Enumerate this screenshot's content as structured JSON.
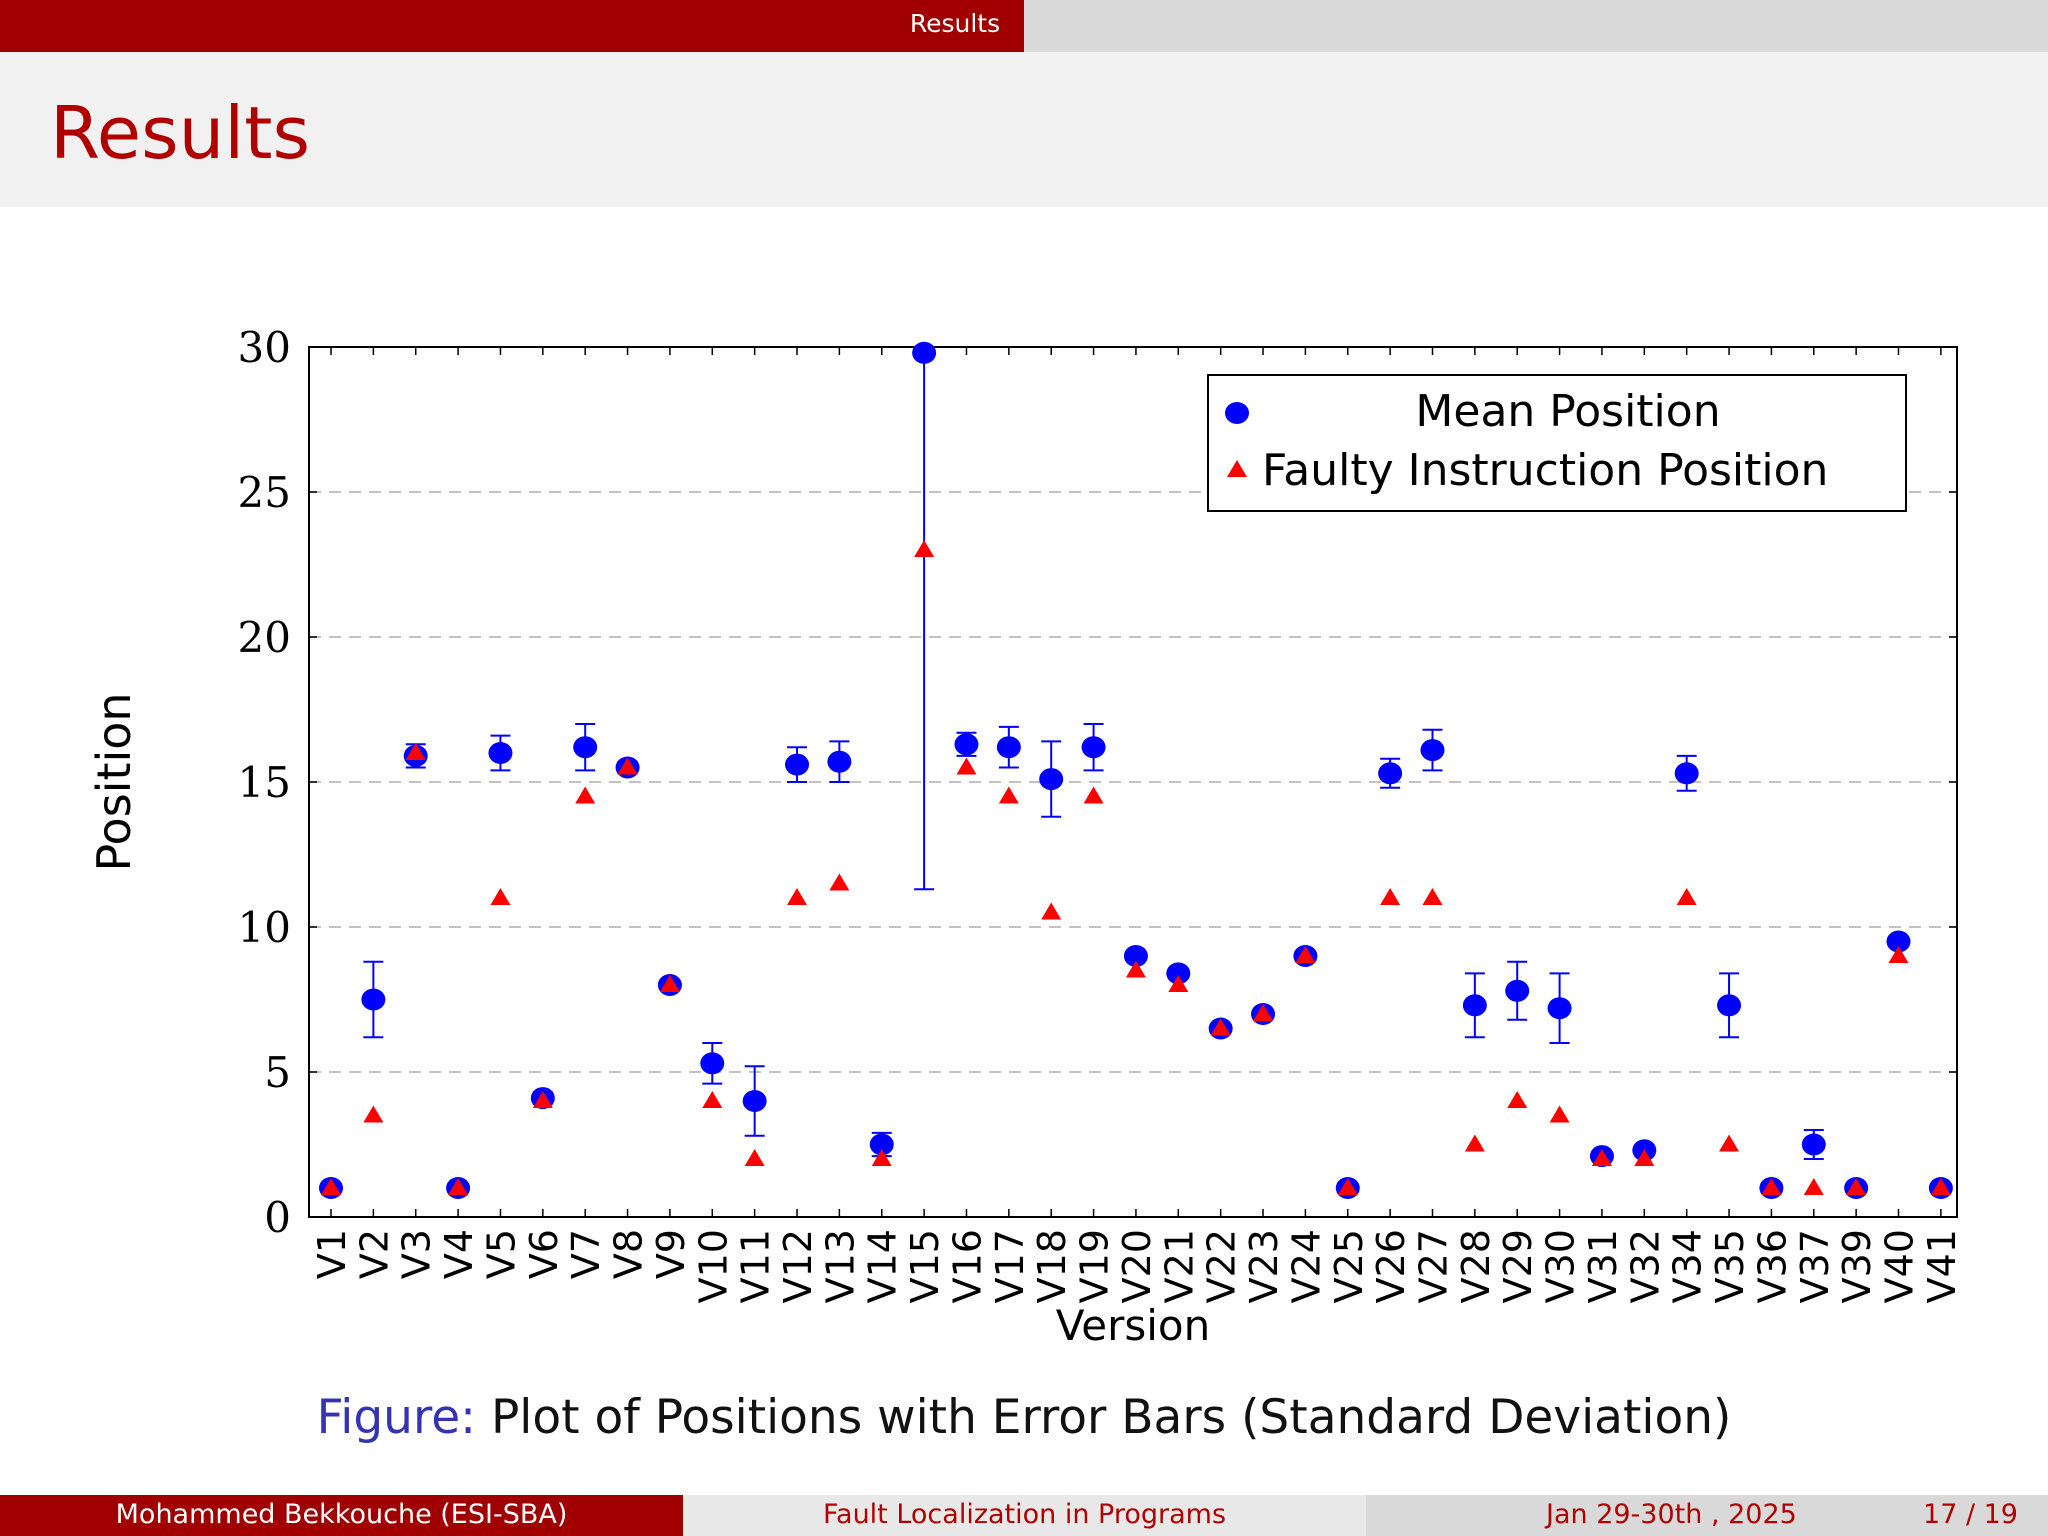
{
  "header": {
    "section": "Results"
  },
  "slide": {
    "title": "Results"
  },
  "caption": {
    "prefix": "Figure:",
    "text": "Plot of Positions with Error Bars (Standard Deviation)"
  },
  "footer": {
    "author": "Mohammed Bekkouche  (ESI-SBA)",
    "talk_title": "Fault Localization in Programs",
    "date": "Jan 29-30th , 2025",
    "page": "17 / 19"
  },
  "colors": {
    "accent": "#a00000",
    "mean": "#0000ff",
    "faulty": "#ff0000"
  },
  "chart_data": {
    "type": "scatter",
    "xlabel": "Version",
    "ylabel": "Position",
    "ylim": [
      0,
      30
    ],
    "yticks": [
      0,
      5,
      10,
      15,
      20,
      25,
      30
    ],
    "grid": "horizontal dashed",
    "legend_position": "top-right",
    "categories": [
      "V1",
      "V2",
      "V3",
      "V4",
      "V5",
      "V6",
      "V7",
      "V8",
      "V9",
      "V10",
      "V11",
      "V12",
      "V13",
      "V14",
      "V15",
      "V16",
      "V17",
      "V18",
      "V19",
      "V20",
      "V21",
      "V22",
      "V23",
      "V24",
      "V25",
      "V26",
      "V27",
      "V28",
      "V29",
      "V30",
      "V31",
      "V32",
      "V34",
      "V35",
      "V36",
      "V37",
      "V39",
      "V40",
      "V41"
    ],
    "series": [
      {
        "name": "Mean Position",
        "marker": "circle",
        "values": [
          1,
          7.5,
          15.9,
          1,
          16,
          4.1,
          16.2,
          15.5,
          8,
          5.3,
          4,
          15.6,
          15.7,
          2.5,
          29.8,
          16.3,
          16.2,
          15.1,
          16.2,
          9,
          8.4,
          6.5,
          7,
          9,
          1,
          15.3,
          16.1,
          7.3,
          7.8,
          7.2,
          2.1,
          2.3,
          15.3,
          7.3,
          1,
          2.5,
          1,
          9.5,
          1
        ],
        "error": [
          0,
          1.3,
          0.4,
          0,
          0.6,
          0.2,
          0.8,
          0.2,
          0,
          0.7,
          1.2,
          0.6,
          0.7,
          0.4,
          18.5,
          0.4,
          0.7,
          1.3,
          0.8,
          0,
          0,
          0,
          0,
          0,
          0,
          0.5,
          0.7,
          1.1,
          1,
          1.2,
          0.1,
          0.1,
          0.6,
          1.1,
          0,
          0.5,
          0,
          0,
          0
        ]
      },
      {
        "name": "Faulty Instruction Position",
        "marker": "triangle",
        "values": [
          1,
          3.5,
          16,
          1,
          11,
          4,
          14.5,
          15.5,
          8,
          4,
          2,
          11,
          11.5,
          2,
          23,
          15.5,
          14.5,
          10.5,
          14.5,
          8.5,
          8,
          6.5,
          7,
          9,
          1,
          11,
          11,
          2.5,
          4,
          3.5,
          2,
          2,
          11,
          2.5,
          1,
          1,
          1,
          9,
          1
        ]
      }
    ]
  }
}
